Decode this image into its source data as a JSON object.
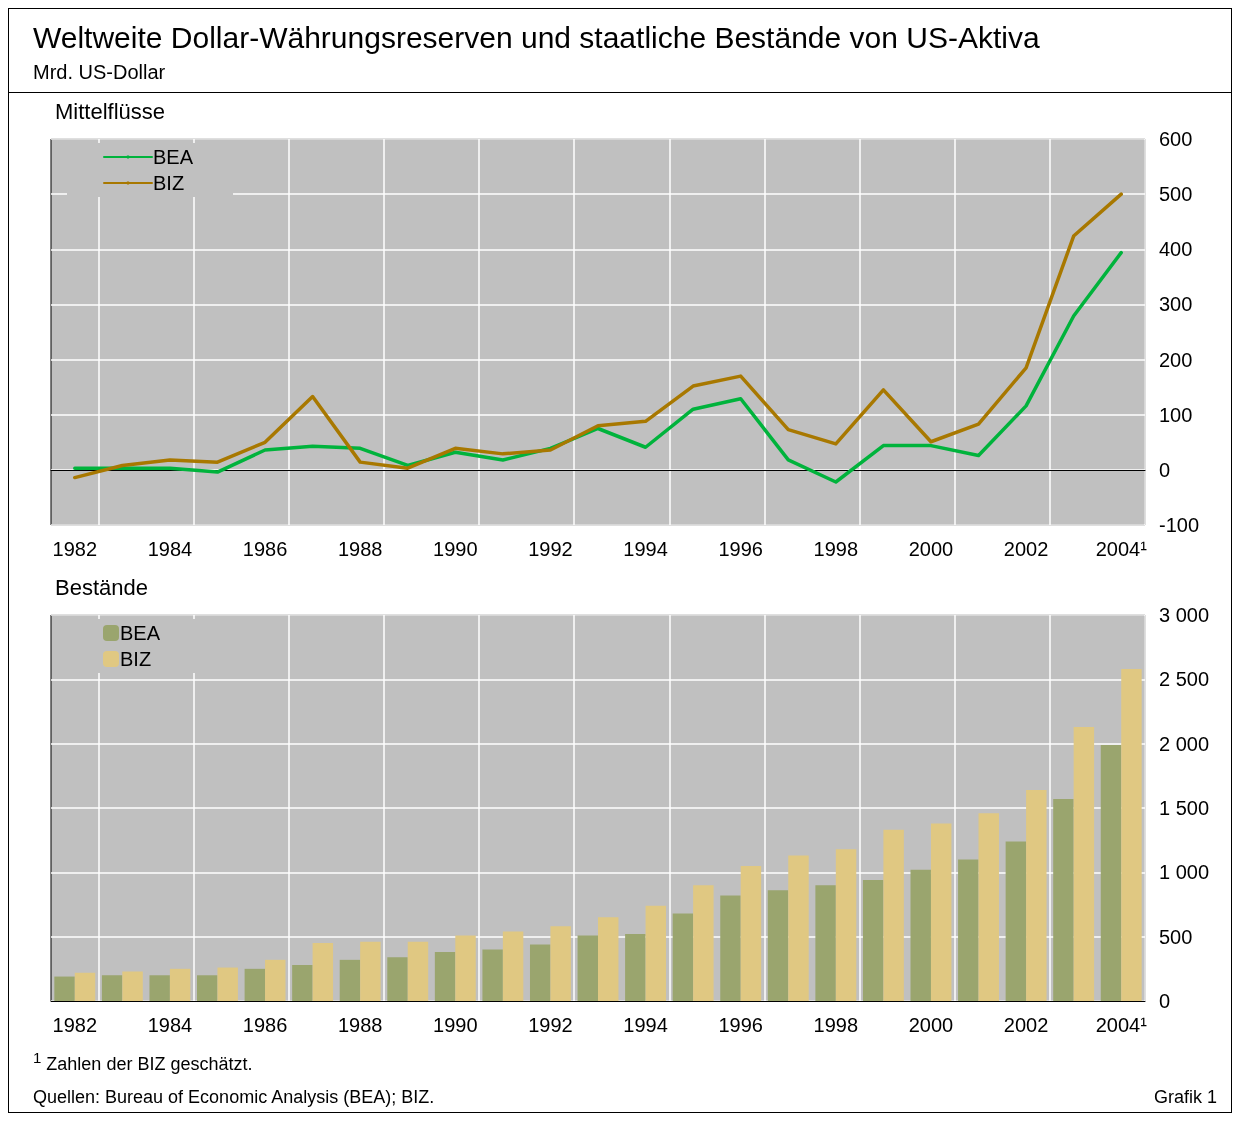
{
  "chart_data": [
    {
      "type": "line",
      "title": "Weltweite Dollar-Währungsreserven und staatliche Bestände von US-Aktiva",
      "subtitle": "Mrd. US-Dollar",
      "annotations": [
        "Mittelflüsse"
      ],
      "categories": [
        "1982",
        null,
        "1984",
        null,
        "1986",
        null,
        "1988",
        null,
        "1990",
        null,
        "1992",
        null,
        "1994",
        null,
        "1996",
        null,
        "1998",
        null,
        "2000",
        null,
        "2002",
        null,
        "2004¹"
      ],
      "series": [
        {
          "name": "BEA",
          "color": "#00b33c",
          "values": [
            3,
            3,
            3,
            -4,
            36,
            43,
            39,
            8,
            32,
            18,
            39,
            75,
            41,
            110,
            129,
            18,
            -22,
            44,
            44,
            26,
            116,
            279,
            394
          ]
        },
        {
          "name": "BIZ",
          "color": "#a87800",
          "values": [
            -14,
            8,
            18,
            14,
            50,
            133,
            14,
            3,
            39,
            29,
            36,
            80,
            88,
            152,
            170,
            73,
            47,
            145,
            51,
            83,
            185,
            424,
            500
          ]
        }
      ],
      "ylim": [
        -100,
        600
      ],
      "yticks": [
        -100,
        0,
        100,
        200,
        300,
        400,
        500,
        600
      ],
      "grid": true,
      "legend": "top left",
      "line_style": "solid",
      "marker": "none"
    },
    {
      "type": "bar",
      "title": "Bestände",
      "annotations": [
        "$^{1}$ Zahlen der BIZ geschätzt.",
        "Quellen: Bureau of Economic Analysis (BEA); BIZ.",
        "Grafik 1"
      ],
      "categories": [
        "1982",
        null,
        "1984",
        null,
        "1986",
        null,
        "1988",
        null,
        "1990",
        null,
        "1992",
        null,
        "1994",
        null,
        "1996",
        null,
        "1998",
        null,
        "2000",
        null,
        "2002",
        null,
        "2004¹"
      ],
      "series": [
        {
          "name": "BEA",
          "color": "#9aa56e",
          "values": [
            190,
            200,
            200,
            200,
            250,
            280,
            320,
            340,
            380,
            400,
            440,
            510,
            520,
            680,
            820,
            860,
            900,
            940,
            1020,
            1100,
            1240,
            1570,
            1990
          ]
        },
        {
          "name": "BIZ",
          "color": "#e0c882",
          "values": [
            220,
            230,
            250,
            260,
            320,
            450,
            460,
            460,
            510,
            540,
            580,
            650,
            740,
            900,
            1050,
            1130,
            1180,
            1330,
            1380,
            1460,
            1640,
            2130,
            2580
          ]
        }
      ],
      "ylim": [
        0,
        3000
      ],
      "yticks": [
        0,
        {
          "value": 500,
          "label": "500"
        },
        {
          "value": 1000,
          "label": "1 000"
        },
        {
          "value": 1500,
          "label": "1 500"
        },
        {
          "value": 2000,
          "label": "2 000"
        },
        {
          "value": 2500,
          "label": "2 500"
        },
        {
          "value": 3000,
          "label": "3 000"
        }
      ],
      "grid": true,
      "legend": "top left"
    }
  ]
}
